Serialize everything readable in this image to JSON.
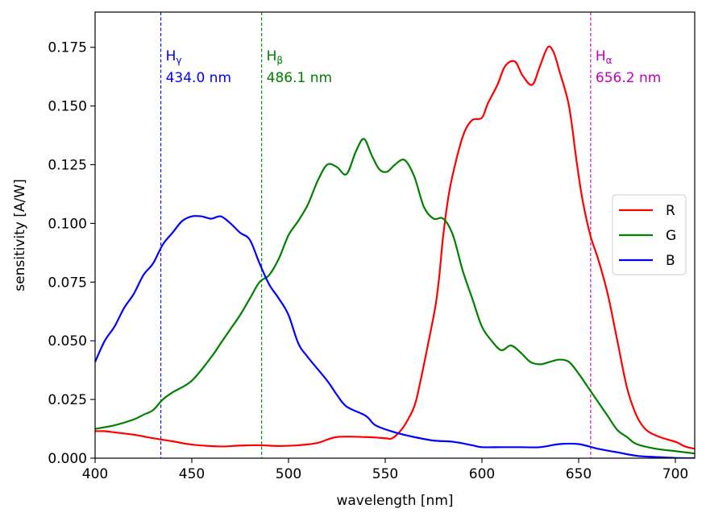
{
  "chart_data": {
    "type": "line",
    "title": "",
    "xlabel": "wavelength [nm]",
    "ylabel": "sensitivity [A/W]",
    "xlim": [
      400,
      710
    ],
    "ylim": [
      0,
      0.19
    ],
    "x_ticks": [
      400,
      450,
      500,
      550,
      600,
      650,
      700
    ],
    "y_ticks": [
      0.0,
      0.025,
      0.05,
      0.075,
      0.1,
      0.125,
      0.15,
      0.175
    ],
    "x_tick_labels": [
      "400",
      "450",
      "500",
      "550",
      "600",
      "650",
      "700"
    ],
    "y_tick_labels": [
      "0.000",
      "0.025",
      "0.050",
      "0.075",
      "0.100",
      "0.125",
      "0.150",
      "0.175"
    ],
    "grid": false,
    "legend_position": "center-right",
    "series": [
      {
        "name": "R",
        "color": "#ff0000",
        "points": [
          [
            400,
            0.0115
          ],
          [
            405,
            0.0115
          ],
          [
            410,
            0.011
          ],
          [
            420,
            0.01
          ],
          [
            430,
            0.0085
          ],
          [
            440,
            0.0072
          ],
          [
            450,
            0.0058
          ],
          [
            465,
            0.005
          ],
          [
            475,
            0.0054
          ],
          [
            485,
            0.0055
          ],
          [
            495,
            0.0052
          ],
          [
            505,
            0.0055
          ],
          [
            515,
            0.0065
          ],
          [
            525,
            0.009
          ],
          [
            540,
            0.009
          ],
          [
            550,
            0.0085
          ],
          [
            553,
            0.0083
          ],
          [
            556,
            0.01
          ],
          [
            560,
            0.014
          ],
          [
            565,
            0.022
          ],
          [
            568,
            0.032
          ],
          [
            572,
            0.048
          ],
          [
            576,
            0.065
          ],
          [
            578,
            0.078
          ],
          [
            580,
            0.095
          ],
          [
            583,
            0.113
          ],
          [
            587,
            0.128
          ],
          [
            591,
            0.139
          ],
          [
            595,
            0.144
          ],
          [
            600,
            0.145
          ],
          [
            603,
            0.151
          ],
          [
            608,
            0.159
          ],
          [
            612,
            0.167
          ],
          [
            617,
            0.169
          ],
          [
            621,
            0.163
          ],
          [
            626,
            0.159
          ],
          [
            630,
            0.167
          ],
          [
            634,
            0.175
          ],
          [
            637,
            0.173
          ],
          [
            640,
            0.165
          ],
          [
            645,
            0.15
          ],
          [
            649,
            0.126
          ],
          [
            652,
            0.11
          ],
          [
            656,
            0.095
          ],
          [
            660,
            0.085
          ],
          [
            665,
            0.07
          ],
          [
            670,
            0.05
          ],
          [
            675,
            0.03
          ],
          [
            680,
            0.018
          ],
          [
            685,
            0.012
          ],
          [
            692,
            0.009
          ],
          [
            700,
            0.007
          ],
          [
            705,
            0.005
          ],
          [
            710,
            0.004
          ]
        ]
      },
      {
        "name": "G",
        "color": "#008000",
        "points": [
          [
            400,
            0.0125
          ],
          [
            410,
            0.014
          ],
          [
            420,
            0.0165
          ],
          [
            425,
            0.0185
          ],
          [
            430,
            0.0205
          ],
          [
            435,
            0.025
          ],
          [
            440,
            0.028
          ],
          [
            450,
            0.033
          ],
          [
            460,
            0.043
          ],
          [
            465,
            0.049
          ],
          [
            470,
            0.055
          ],
          [
            475,
            0.061
          ],
          [
            480,
            0.068
          ],
          [
            485,
            0.075
          ],
          [
            490,
            0.078
          ],
          [
            495,
            0.085
          ],
          [
            500,
            0.095
          ],
          [
            505,
            0.101
          ],
          [
            510,
            0.108
          ],
          [
            515,
            0.118
          ],
          [
            520,
            0.125
          ],
          [
            525,
            0.124
          ],
          [
            530,
            0.121
          ],
          [
            535,
            0.131
          ],
          [
            539,
            0.136
          ],
          [
            543,
            0.129
          ],
          [
            547,
            0.123
          ],
          [
            551,
            0.122
          ],
          [
            555,
            0.125
          ],
          [
            560,
            0.127
          ],
          [
            565,
            0.12
          ],
          [
            570,
            0.107
          ],
          [
            575,
            0.102
          ],
          [
            580,
            0.102
          ],
          [
            585,
            0.095
          ],
          [
            590,
            0.08
          ],
          [
            595,
            0.068
          ],
          [
            600,
            0.056
          ],
          [
            605,
            0.05
          ],
          [
            610,
            0.046
          ],
          [
            615,
            0.048
          ],
          [
            620,
            0.045
          ],
          [
            625,
            0.041
          ],
          [
            630,
            0.04
          ],
          [
            635,
            0.041
          ],
          [
            640,
            0.042
          ],
          [
            645,
            0.041
          ],
          [
            650,
            0.036
          ],
          [
            655,
            0.03
          ],
          [
            660,
            0.024
          ],
          [
            665,
            0.018
          ],
          [
            670,
            0.012
          ],
          [
            675,
            0.009
          ],
          [
            680,
            0.006
          ],
          [
            690,
            0.004
          ],
          [
            700,
            0.003
          ],
          [
            710,
            0.002
          ]
        ]
      },
      {
        "name": "B",
        "color": "#0000ff",
        "points": [
          [
            400,
            0.041
          ],
          [
            405,
            0.05
          ],
          [
            410,
            0.056
          ],
          [
            415,
            0.064
          ],
          [
            420,
            0.07
          ],
          [
            425,
            0.078
          ],
          [
            430,
            0.083
          ],
          [
            435,
            0.091
          ],
          [
            440,
            0.096
          ],
          [
            445,
            0.101
          ],
          [
            450,
            0.103
          ],
          [
            455,
            0.103
          ],
          [
            460,
            0.102
          ],
          [
            465,
            0.103
          ],
          [
            470,
            0.1
          ],
          [
            475,
            0.096
          ],
          [
            480,
            0.093
          ],
          [
            485,
            0.083
          ],
          [
            490,
            0.074
          ],
          [
            495,
            0.068
          ],
          [
            500,
            0.061
          ],
          [
            505,
            0.049
          ],
          [
            510,
            0.043
          ],
          [
            520,
            0.033
          ],
          [
            525,
            0.027
          ],
          [
            530,
            0.022
          ],
          [
            540,
            0.018
          ],
          [
            545,
            0.014
          ],
          [
            555,
            0.011
          ],
          [
            565,
            0.009
          ],
          [
            575,
            0.0075
          ],
          [
            585,
            0.007
          ],
          [
            595,
            0.0055
          ],
          [
            600,
            0.0047
          ],
          [
            610,
            0.0047
          ],
          [
            620,
            0.0047
          ],
          [
            630,
            0.0047
          ],
          [
            640,
            0.006
          ],
          [
            650,
            0.006
          ],
          [
            660,
            0.004
          ],
          [
            670,
            0.0025
          ],
          [
            680,
            0.001
          ],
          [
            690,
            0.0005
          ],
          [
            700,
            0.0001
          ],
          [
            710,
            0.0
          ]
        ]
      }
    ],
    "reference_lines": [
      {
        "name": "H",
        "subscript": "γ",
        "value": 434.0,
        "label": "434.0 nm",
        "color": "#0000ff"
      },
      {
        "name": "H",
        "subscript": "β",
        "value": 486.1,
        "label": "486.1 nm",
        "color": "#008000"
      },
      {
        "name": "H",
        "subscript": "α",
        "value": 656.2,
        "label": "656.2 nm",
        "color": "#c000c0"
      }
    ]
  }
}
